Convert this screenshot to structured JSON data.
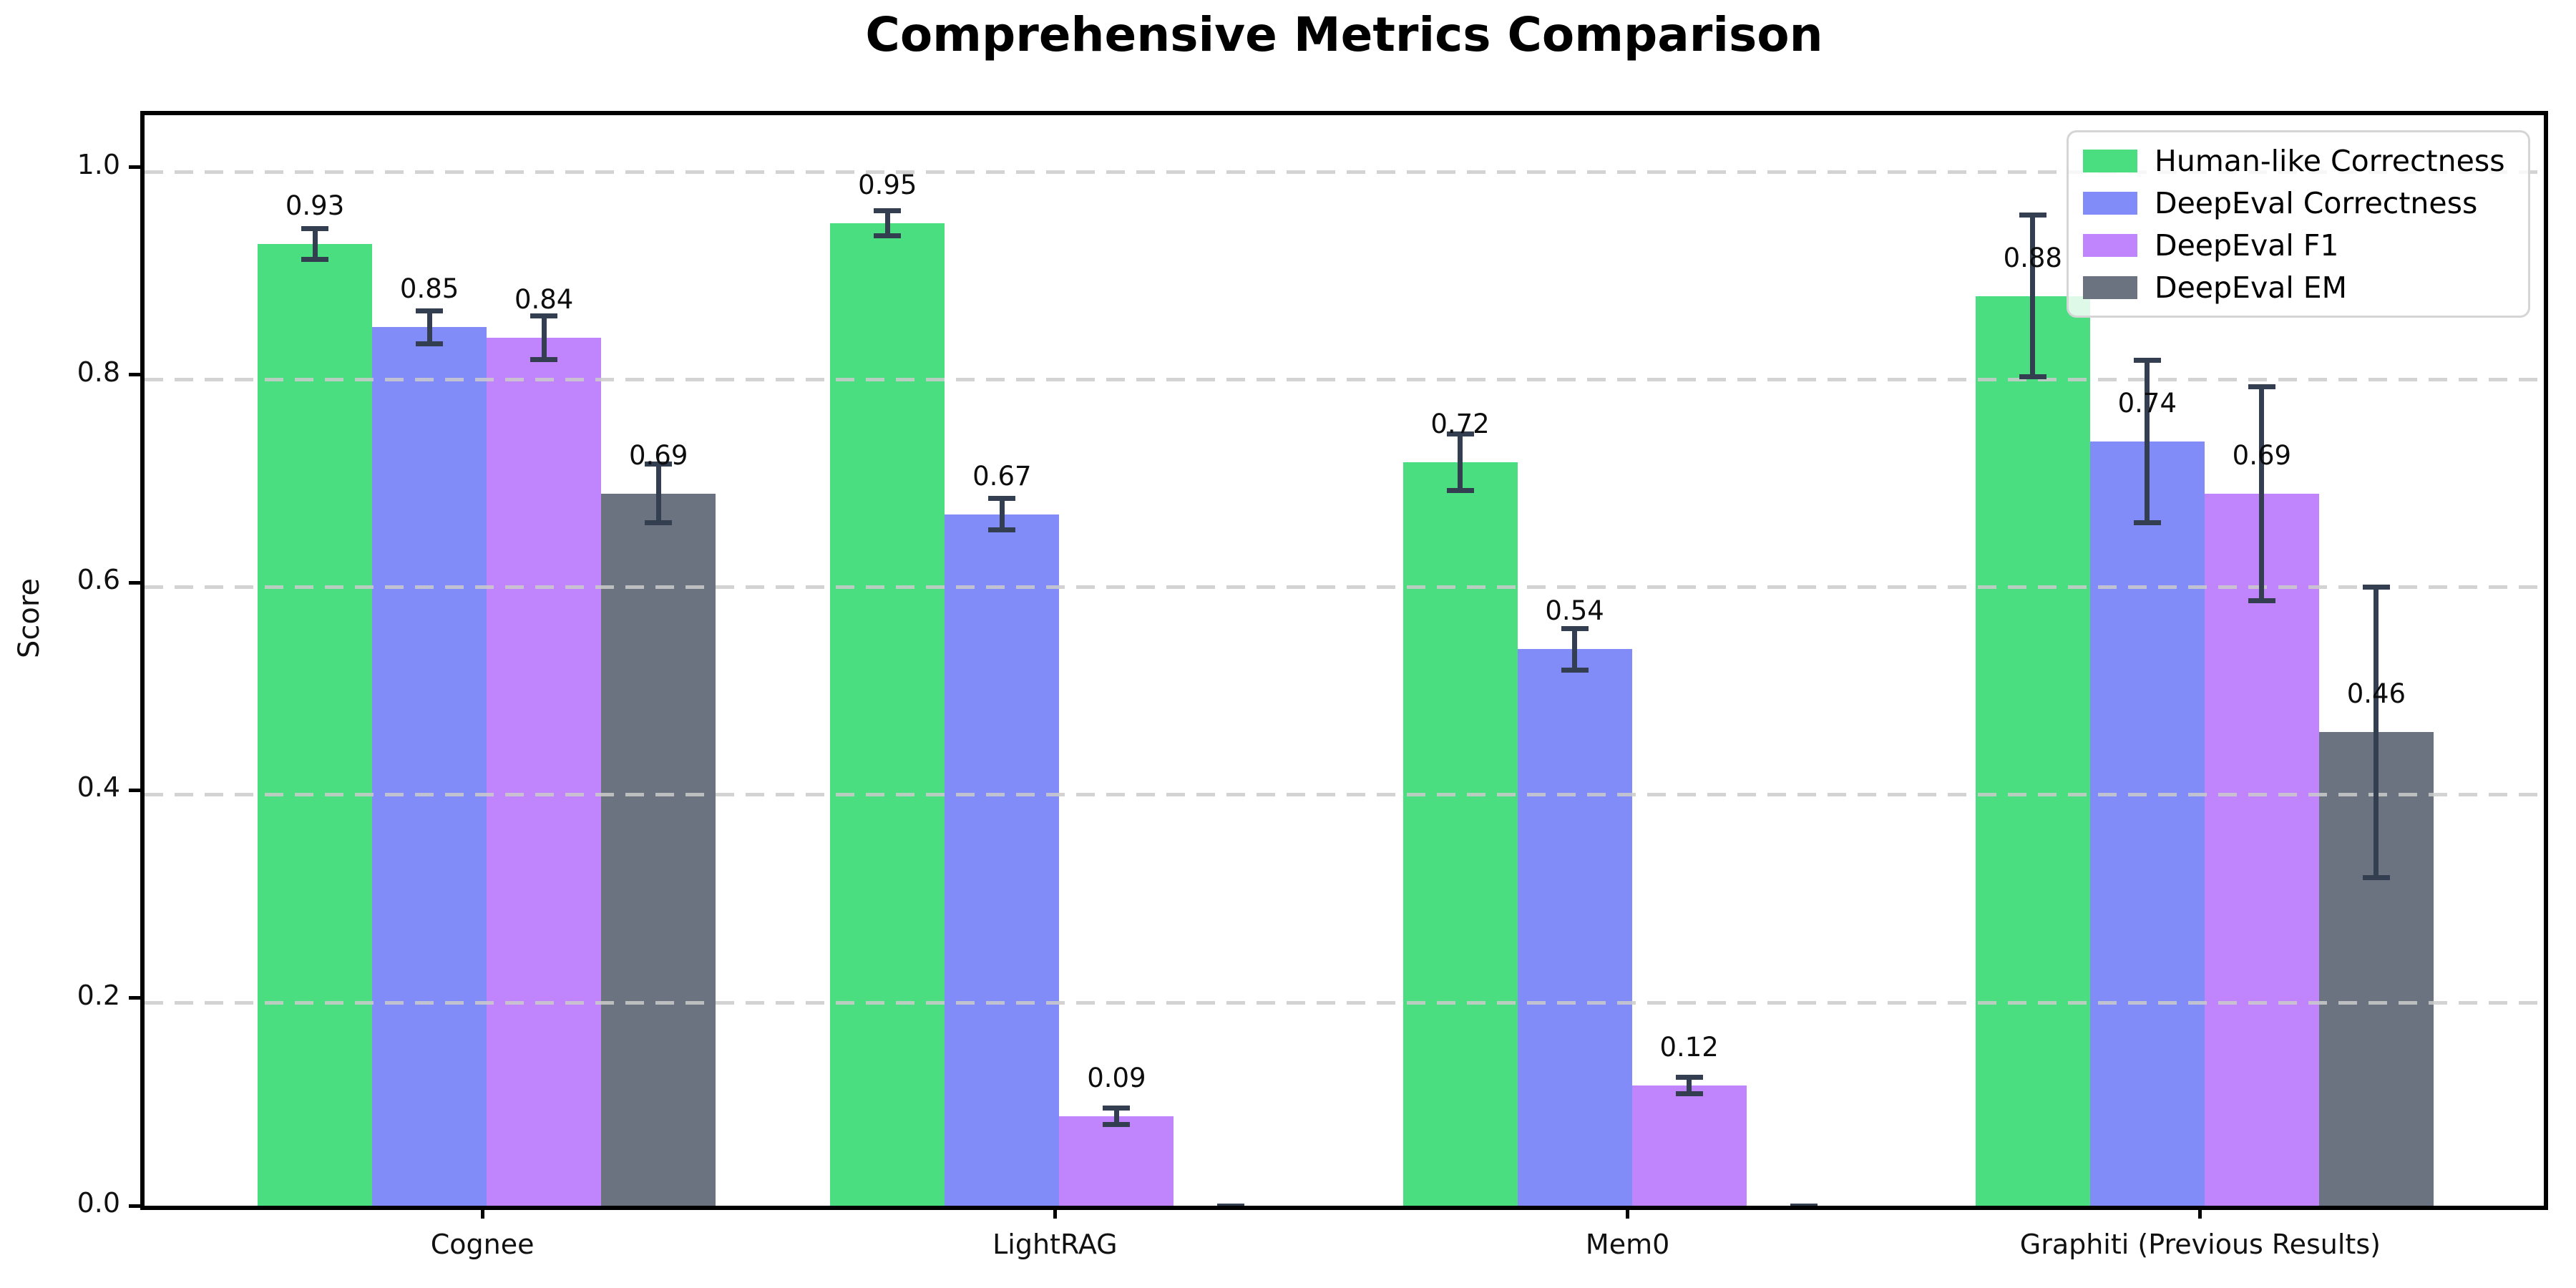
{
  "title": "Comprehensive Metrics Comparison",
  "chart_data": {
    "type": "bar",
    "title": "Comprehensive Metrics Comparison",
    "xlabel": "",
    "ylabel": "Score",
    "categories": [
      "Cognee",
      "LightRAG",
      "Mem0",
      "Graphiti (Previous Results)"
    ],
    "series": [
      {
        "name": "Human-like Correctness",
        "color": "#4ade80",
        "values": [
          0.93,
          0.95,
          0.72,
          0.88
        ],
        "errors": [
          0.015,
          0.012,
          0.027,
          0.078
        ]
      },
      {
        "name": "DeepEval Correctness",
        "color": "#818cf8",
        "values": [
          0.85,
          0.67,
          0.54,
          0.74
        ],
        "errors": [
          0.016,
          0.015,
          0.02,
          0.078
        ]
      },
      {
        "name": "DeepEval F1",
        "color": "#c084fc",
        "values": [
          0.84,
          0.09,
          0.12,
          0.69
        ],
        "errors": [
          0.021,
          0.008,
          0.008,
          0.103
        ]
      },
      {
        "name": "DeepEval EM",
        "color": "#6b7280",
        "values": [
          0.69,
          0.0,
          0.0,
          0.46
        ],
        "errors": [
          0.028,
          0.004,
          0.004,
          0.14
        ]
      }
    ],
    "bar_value_labels": [
      [
        "0.93",
        "0.95",
        "0.72",
        "0.88"
      ],
      [
        "0.85",
        "0.67",
        "0.54",
        "0.74"
      ],
      [
        "0.84",
        "0.09",
        "0.12",
        "0.69"
      ],
      [
        "0.69",
        "",
        "",
        "0.46"
      ]
    ],
    "ylim": [
      0,
      1.05
    ],
    "yticks": [
      "0.0",
      "0.2",
      "0.4",
      "0.6",
      "0.8",
      "1.0"
    ],
    "ytick_values": [
      0.0,
      0.2,
      0.4,
      0.6,
      0.8,
      1.0
    ],
    "grid": "horizontal-dashed",
    "legend_position": "upper right"
  },
  "colors": {
    "error_bar": "#333e50",
    "grid": "#cbcbcb",
    "spine": "#000000",
    "legend_border": "#d5d5d5",
    "background": "#ffffff"
  }
}
